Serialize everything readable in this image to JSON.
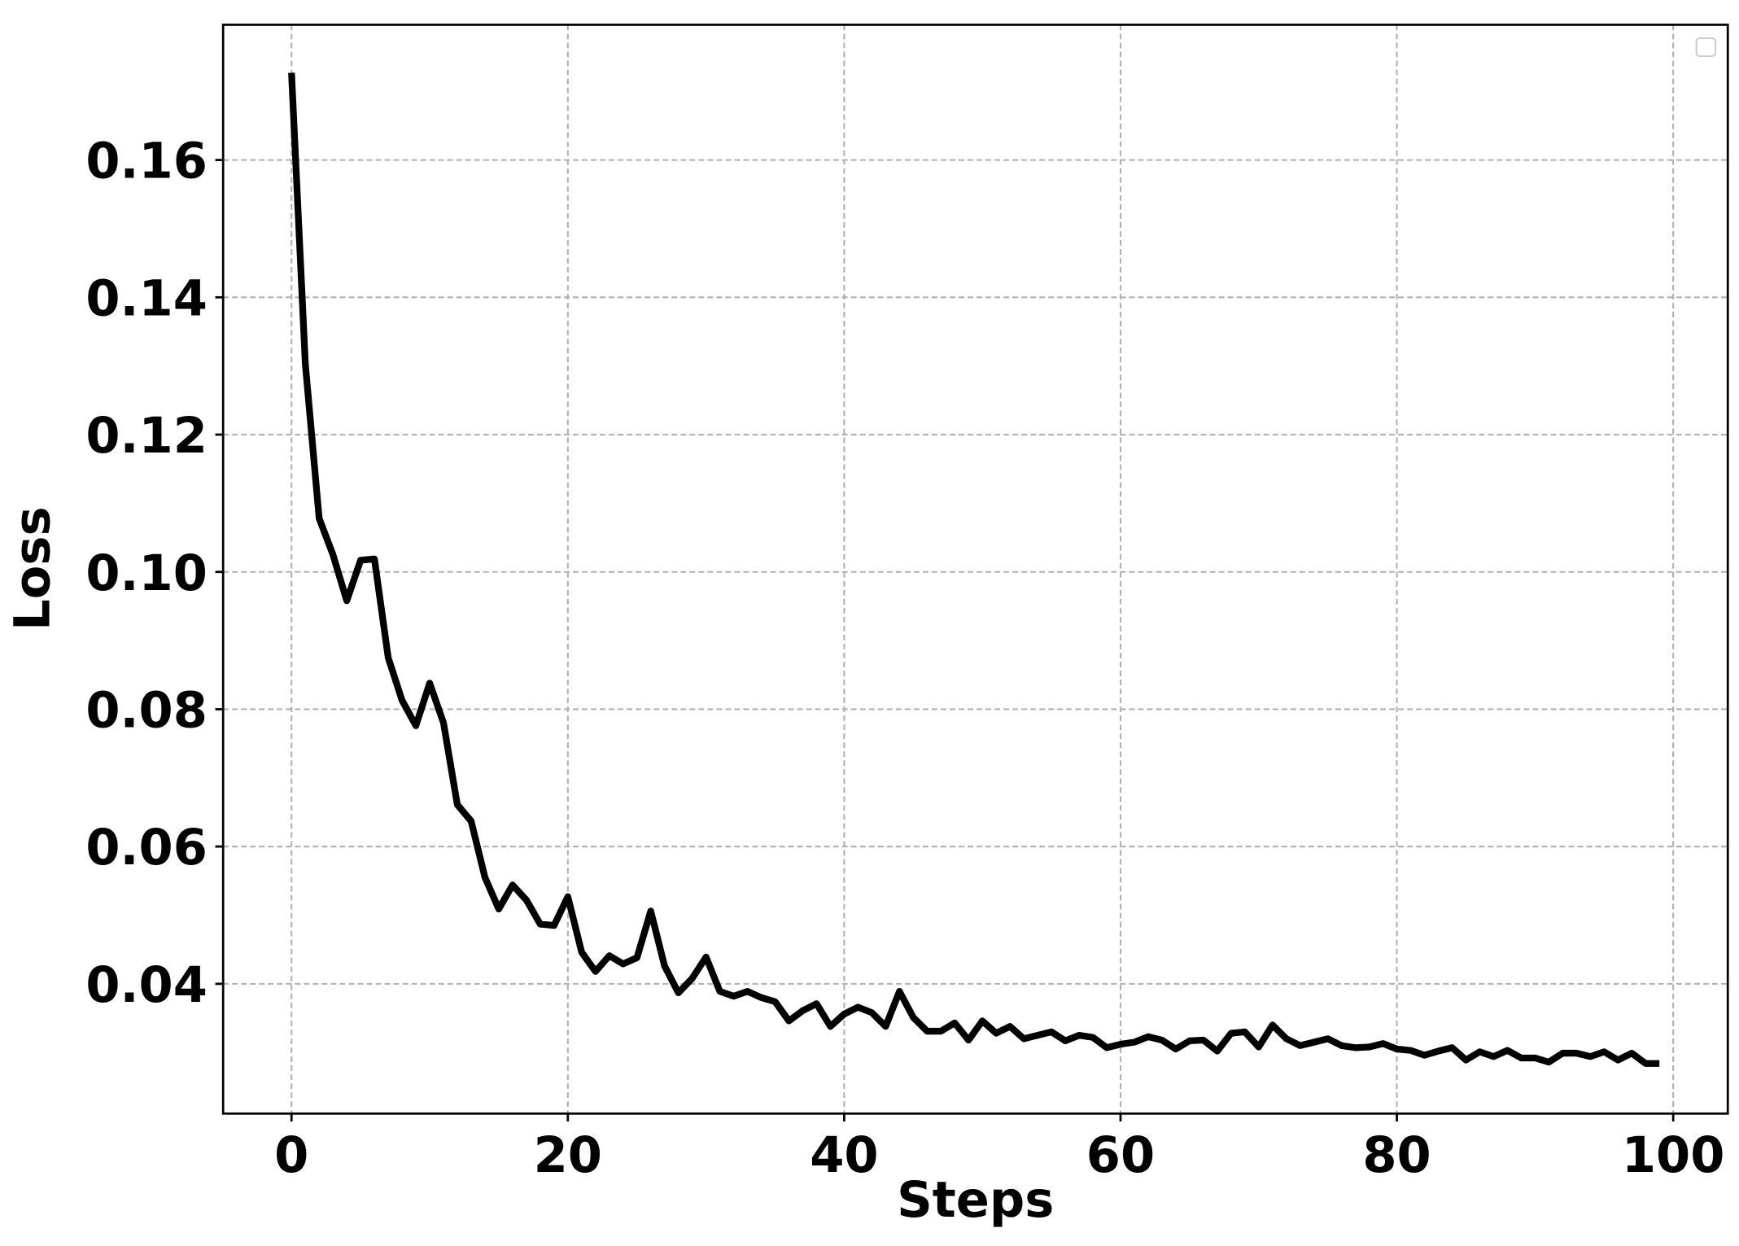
{
  "chart_data": {
    "type": "line",
    "x_label": "Steps",
    "y_label": "Loss",
    "x": [
      0,
      1,
      2,
      3,
      4,
      5,
      6,
      7,
      8,
      9,
      10,
      11,
      12,
      13,
      14,
      15,
      16,
      17,
      18,
      19,
      20,
      21,
      22,
      23,
      24,
      25,
      26,
      27,
      28,
      29,
      30,
      31,
      32,
      33,
      34,
      35,
      36,
      37,
      38,
      39,
      40,
      41,
      42,
      43,
      44,
      45,
      46,
      47,
      48,
      49,
      50,
      51,
      52,
      53,
      54,
      55,
      56,
      57,
      58,
      59,
      60,
      61,
      62,
      63,
      64,
      65,
      66,
      67,
      68,
      69,
      70,
      71,
      72,
      73,
      74,
      75,
      76,
      77,
      78,
      79,
      80,
      81,
      82,
      83,
      84,
      85,
      86,
      87,
      88,
      89,
      90,
      91,
      92,
      93,
      94,
      95,
      96,
      97,
      98,
      99
    ],
    "values": [
      0.1727,
      0.1303,
      0.1078,
      0.1025,
      0.0958,
      0.1017,
      0.1019,
      0.0875,
      0.0813,
      0.0776,
      0.0838,
      0.078,
      0.0661,
      0.0637,
      0.0555,
      0.0509,
      0.0544,
      0.0522,
      0.0487,
      0.0485,
      0.0527,
      0.0446,
      0.0418,
      0.0441,
      0.0429,
      0.0438,
      0.0506,
      0.0426,
      0.0387,
      0.0408,
      0.0439,
      0.0389,
      0.0382,
      0.0389,
      0.038,
      0.0374,
      0.0346,
      0.0361,
      0.0371,
      0.0338,
      0.0356,
      0.0366,
      0.0358,
      0.0338,
      0.0389,
      0.0351,
      0.0331,
      0.0331,
      0.0343,
      0.0318,
      0.0346,
      0.0328,
      0.0338,
      0.032,
      0.0325,
      0.033,
      0.0317,
      0.0325,
      0.0322,
      0.0307,
      0.0312,
      0.0315,
      0.0323,
      0.0318,
      0.0305,
      0.0317,
      0.0318,
      0.0302,
      0.0328,
      0.033,
      0.0308,
      0.034,
      0.032,
      0.031,
      0.0315,
      0.032,
      0.031,
      0.0307,
      0.0308,
      0.0313,
      0.0305,
      0.0303,
      0.0296,
      0.0302,
      0.0307,
      0.0289,
      0.0301,
      0.0294,
      0.0303,
      0.0292,
      0.0292,
      0.0286,
      0.0299,
      0.0299,
      0.0294,
      0.0301,
      0.0289,
      0.0299,
      0.0284,
      0.0284
    ],
    "color": "#000000",
    "xlim": [
      -4.95,
      103.95
    ],
    "xticks": [
      0,
      20,
      40,
      60,
      80,
      100
    ],
    "ylim": [
      0.0211,
      0.1797
    ],
    "yticks": [
      0.04,
      0.06,
      0.08,
      {
        "value": 0.1,
        "label": "0.10"
      },
      0.12,
      0.14,
      0.16
    ],
    "grid": true
  }
}
